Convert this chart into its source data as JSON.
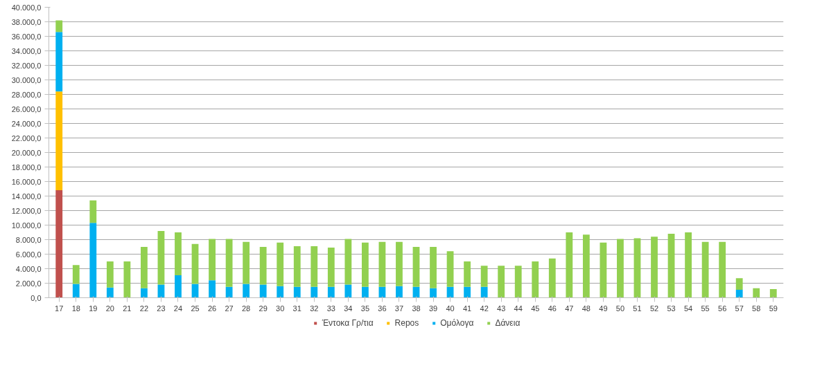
{
  "chart_data": {
    "type": "bar",
    "stacked": true,
    "grid": "y",
    "legend": "bottom",
    "categories": [
      "17",
      "18",
      "19",
      "20",
      "21",
      "22",
      "23",
      "24",
      "25",
      "26",
      "27",
      "28",
      "29",
      "30",
      "31",
      "32",
      "33",
      "34",
      "35",
      "36",
      "37",
      "38",
      "39",
      "40",
      "41",
      "42",
      "43",
      "44",
      "45",
      "46",
      "47",
      "48",
      "49",
      "50",
      "51",
      "52",
      "53",
      "54",
      "55",
      "56",
      "57",
      "58",
      "59"
    ],
    "ylim": [
      0,
      40000
    ],
    "yticks": [
      {
        "value": 0,
        "label": "0,0"
      },
      {
        "value": 2000,
        "label": "2.000,0"
      },
      {
        "value": 4000,
        "label": "4.000,0"
      },
      {
        "value": 6000,
        "label": "6.000,0"
      },
      {
        "value": 8000,
        "label": "8.000,0"
      },
      {
        "value": 10000,
        "label": "10.000,0"
      },
      {
        "value": 12000,
        "label": "12.000,0"
      },
      {
        "value": 14000,
        "label": "14.000,0"
      },
      {
        "value": 16000,
        "label": "16.000,0"
      },
      {
        "value": 18000,
        "label": "18.000,0"
      },
      {
        "value": 20000,
        "label": "20.000,0"
      },
      {
        "value": 22000,
        "label": "22.000,0"
      },
      {
        "value": 24000,
        "label": "24.000,0"
      },
      {
        "value": 26000,
        "label": "26.000,0"
      },
      {
        "value": 28000,
        "label": "28.000,0"
      },
      {
        "value": 30000,
        "label": "30.000,0"
      },
      {
        "value": 32000,
        "label": "32.000,0"
      },
      {
        "value": 34000,
        "label": "34.000,0"
      },
      {
        "value": 36000,
        "label": "36.000,0"
      },
      {
        "value": 38000,
        "label": "38.000,0"
      },
      {
        "value": 40000,
        "label": "40.000,0"
      }
    ],
    "series": [
      {
        "name": "Έντοκα Γρ/τια",
        "color": "#c0504d",
        "values": [
          14800,
          0,
          0,
          0,
          0,
          0,
          0,
          0,
          0,
          0,
          0,
          0,
          0,
          0,
          0,
          0,
          0,
          0,
          0,
          0,
          0,
          0,
          0,
          0,
          0,
          0,
          0,
          0,
          0,
          0,
          0,
          0,
          0,
          0,
          0,
          0,
          0,
          0,
          0,
          0,
          0,
          0,
          0
        ]
      },
      {
        "name": "Repos",
        "color": "#ffc000",
        "values": [
          13600,
          0,
          0,
          0,
          0,
          0,
          0,
          0,
          0,
          0,
          0,
          0,
          0,
          0,
          0,
          0,
          0,
          0,
          0,
          0,
          0,
          0,
          0,
          0,
          0,
          0,
          0,
          0,
          0,
          0,
          0,
          0,
          0,
          0,
          0,
          0,
          0,
          0,
          0,
          0,
          0,
          0,
          0
        ]
      },
      {
        "name": "Ομόλογα",
        "color": "#00b0f0",
        "values": [
          8200,
          1900,
          10300,
          1400,
          0,
          1300,
          1800,
          3100,
          1900,
          2400,
          1500,
          1900,
          1800,
          1600,
          1500,
          1500,
          1500,
          1800,
          1500,
          1500,
          1600,
          1500,
          1300,
          1500,
          1500,
          1500,
          0,
          0,
          0,
          0,
          0,
          0,
          0,
          0,
          0,
          0,
          0,
          0,
          0,
          0,
          1100,
          0,
          0
        ]
      },
      {
        "name": "Δάνεια",
        "color": "#92d050",
        "values": [
          1600,
          2600,
          3100,
          3600,
          5000,
          5700,
          7400,
          5900,
          5500,
          5700,
          6600,
          5800,
          5200,
          6000,
          5600,
          5600,
          5400,
          6300,
          6100,
          6200,
          6100,
          5500,
          5700,
          4900,
          3500,
          2900,
          4400,
          4400,
          5000,
          5400,
          9000,
          8700,
          7600,
          8100,
          8200,
          8400,
          8800,
          9000,
          7700,
          7700,
          1600,
          1300,
          1200
        ]
      }
    ]
  }
}
